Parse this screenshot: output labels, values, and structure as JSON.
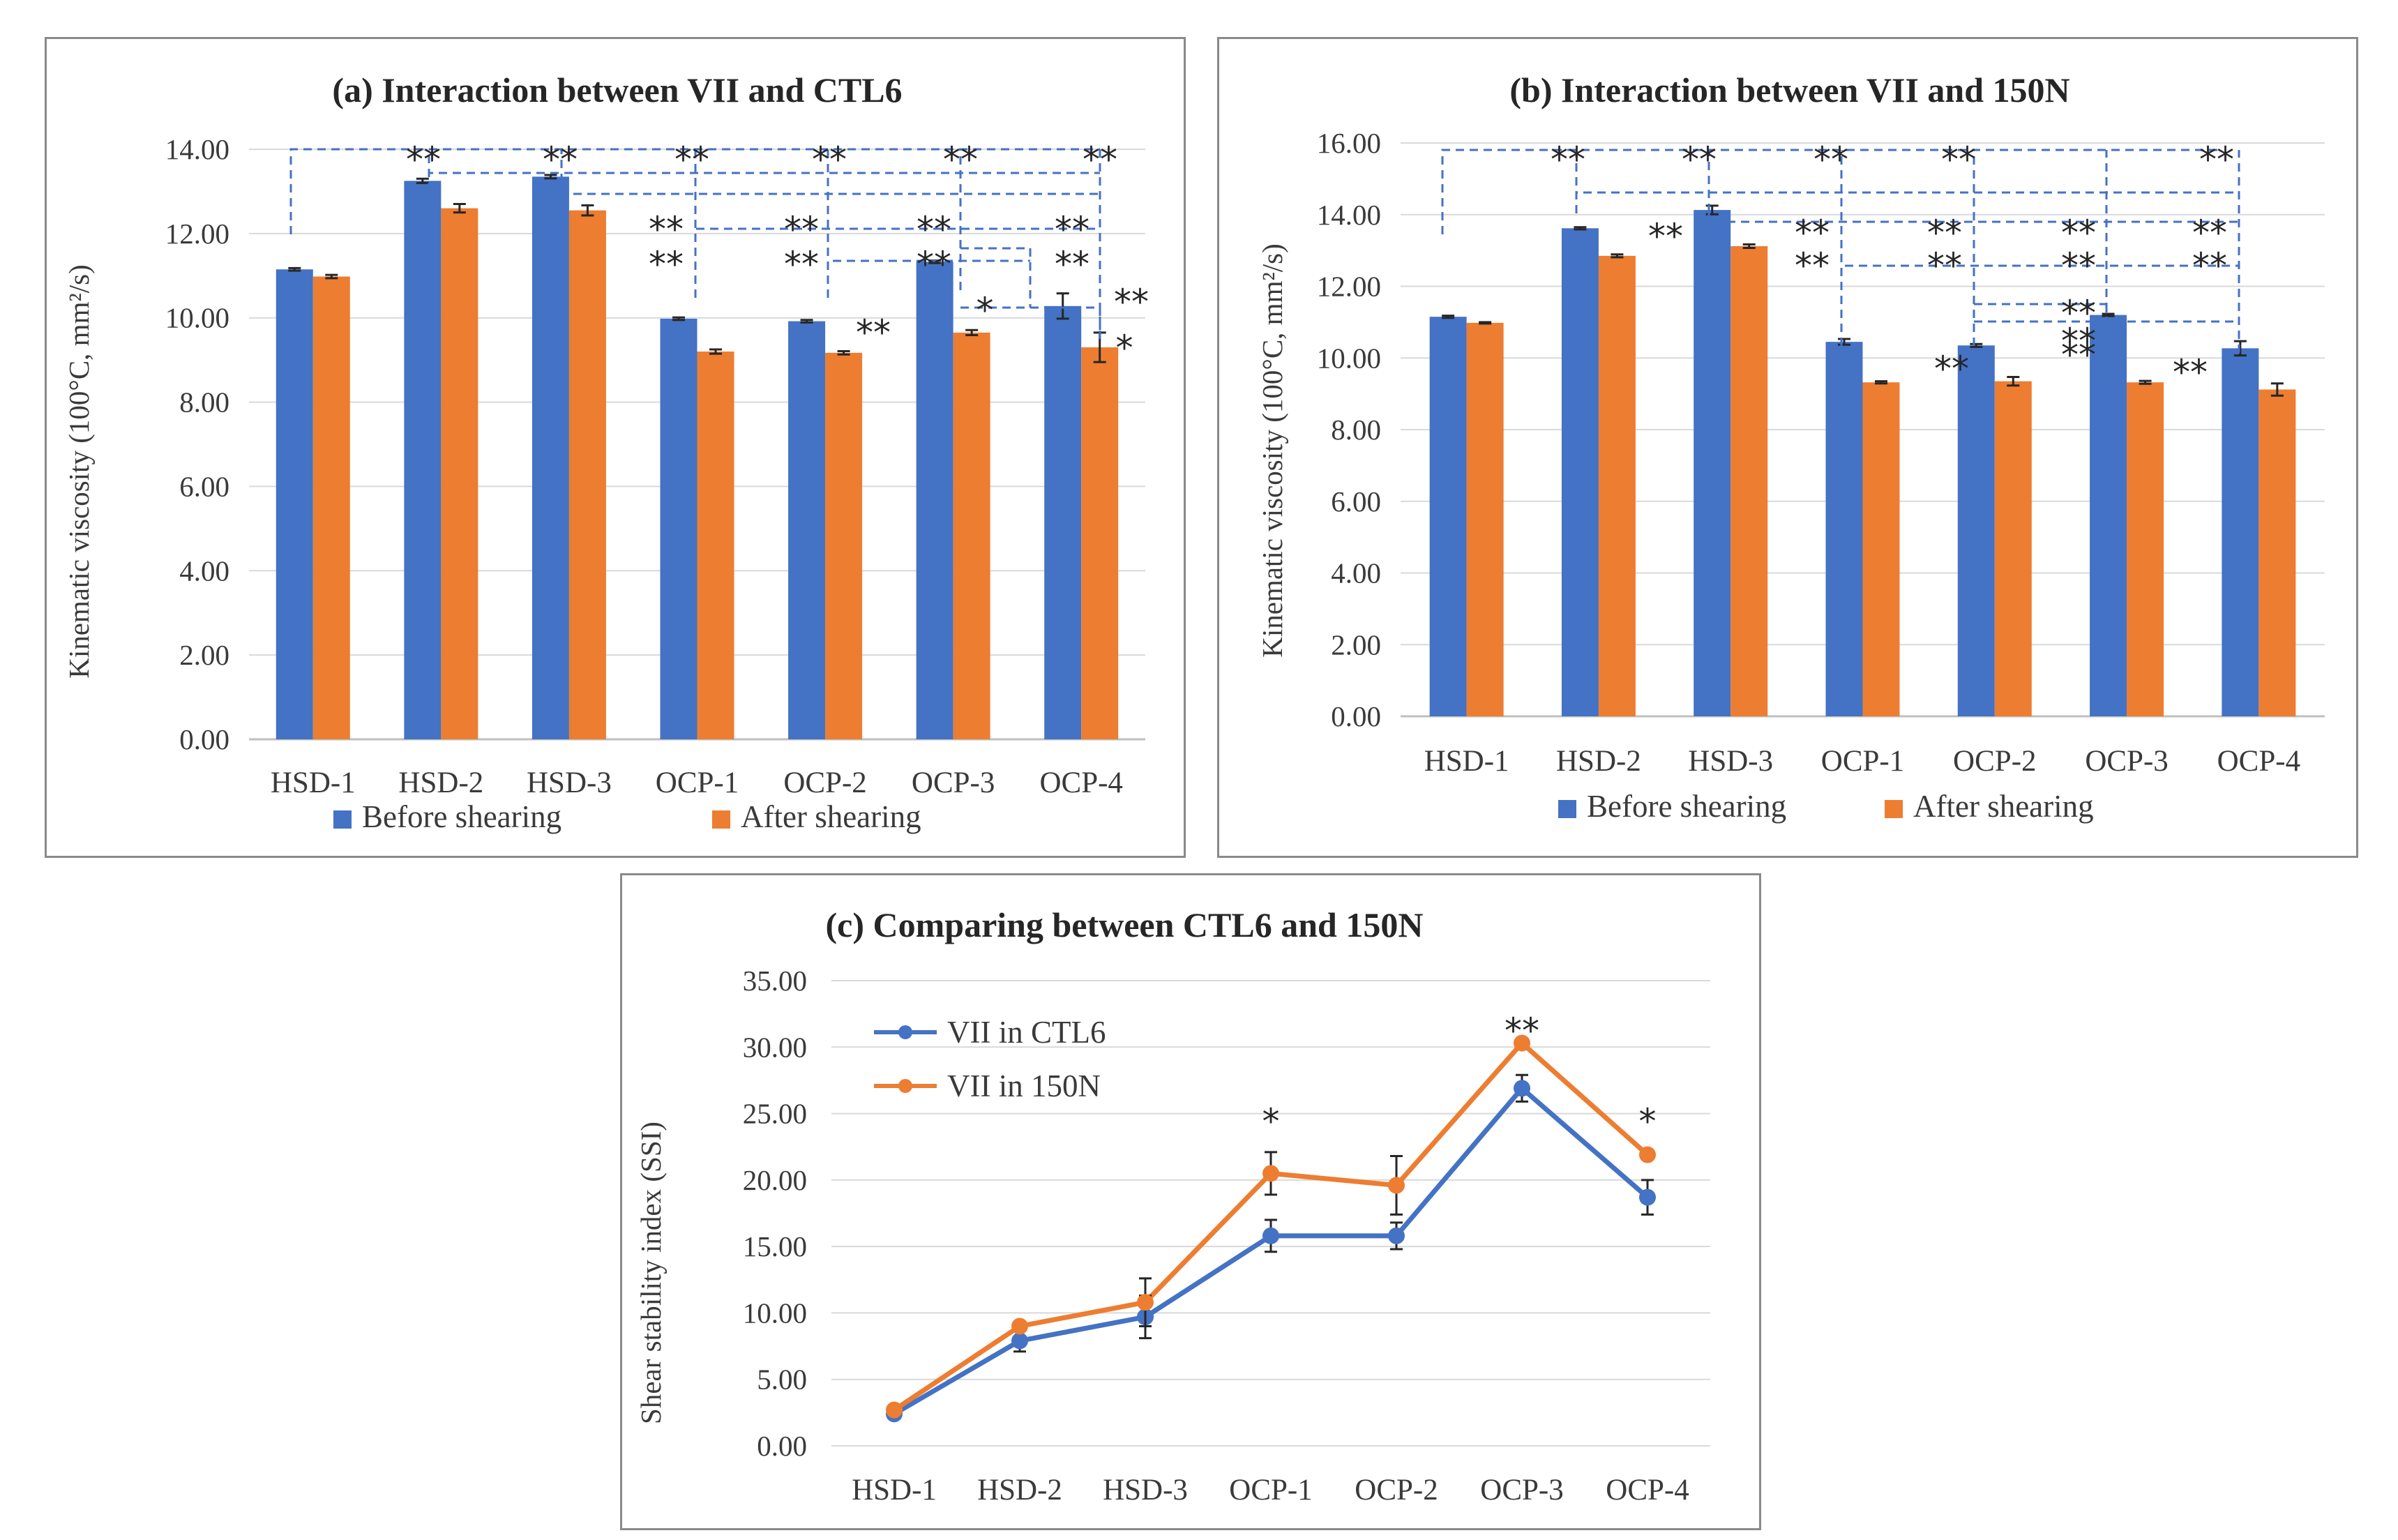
{
  "colors": {
    "before": "#4472c4",
    "after": "#ed7d31",
    "ctl6": "#4472c4",
    "n150": "#ed7d31"
  },
  "panel_a": {
    "title": "(a) Interaction between VII and CTL6",
    "ylabel": "Kinematic viscosity (100°C, mm²/s)",
    "legend": [
      "Before shearing",
      "After shearing"
    ],
    "y_ticks": [
      "0.00",
      "2.00",
      "4.00",
      "6.00",
      "8.00",
      "10.00",
      "12.00",
      "14.00"
    ],
    "annotations": [
      "**",
      "**",
      "**",
      "**",
      "**",
      "**",
      "**",
      "**",
      "**",
      "**",
      "**",
      "**",
      "**",
      "**",
      "**",
      "*",
      "**",
      "*"
    ]
  },
  "panel_b": {
    "title": "(b) Interaction between VII and 150N",
    "ylabel": "Kinematic viscosity (100°C, mm²/s)",
    "legend": [
      "Before shearing",
      "After shearing"
    ],
    "y_ticks": [
      "0.00",
      "2.00",
      "4.00",
      "6.00",
      "8.00",
      "10.00",
      "12.00",
      "14.00",
      "16.00"
    ],
    "annotations": [
      "**",
      "**",
      "**",
      "**",
      "**",
      "**",
      "**",
      "**",
      "**",
      "**",
      "**",
      "**",
      "**",
      "**",
      "**",
      "**",
      "**",
      "**",
      "**"
    ]
  },
  "panel_c": {
    "title": "(c) Comparing between CTL6 and 150N",
    "ylabel": "Shear stability index (SSI)",
    "legend": [
      "VII in CTL6",
      "VII in 150N"
    ],
    "y_ticks": [
      "0.00",
      "5.00",
      "10.00",
      "15.00",
      "20.00",
      "25.00",
      "30.00",
      "35.00"
    ],
    "annotations": [
      "*",
      "**",
      "*"
    ]
  },
  "chart_data": [
    {
      "type": "bar",
      "title": "(a) Interaction between VII and CTL6",
      "ylabel": "Kinematic viscosity (100°C, mm²/s)",
      "xlabel": "",
      "ylim": [
        0,
        14
      ],
      "grid": true,
      "legend": "bottom",
      "categories": [
        "HSD-1",
        "HSD-2",
        "HSD-3",
        "OCP-1",
        "OCP-2",
        "OCP-3",
        "OCP-4"
      ],
      "series": [
        {
          "name": "Before shearing",
          "values": [
            11.15,
            13.25,
            13.35,
            9.98,
            9.92,
            11.33,
            10.28
          ],
          "errors": [
            0.03,
            0.05,
            0.04,
            0.03,
            0.03,
            0.03,
            0.3
          ]
        },
        {
          "name": "After shearing",
          "values": [
            10.98,
            12.6,
            12.55,
            9.2,
            9.17,
            9.65,
            9.3
          ],
          "errors": [
            0.04,
            0.1,
            0.12,
            0.05,
            0.04,
            0.06,
            0.35
          ]
        }
      ]
    },
    {
      "type": "bar",
      "title": "(b) Interaction between VII and 150N",
      "ylabel": "Kinematic viscosity (100°C, mm²/s)",
      "xlabel": "",
      "ylim": [
        0,
        16
      ],
      "grid": true,
      "legend": "bottom",
      "categories": [
        "HSD-1",
        "HSD-2",
        "HSD-3",
        "OCP-1",
        "OCP-2",
        "OCP-3",
        "OCP-4"
      ],
      "series": [
        {
          "name": "Before shearing",
          "values": [
            11.15,
            13.62,
            14.13,
            10.45,
            10.35,
            11.2,
            10.27
          ],
          "errors": [
            0.03,
            0.03,
            0.12,
            0.08,
            0.04,
            0.03,
            0.2
          ]
        },
        {
          "name": "After shearing",
          "values": [
            10.98,
            12.85,
            13.12,
            9.32,
            9.35,
            9.32,
            9.12
          ],
          "errors": [
            0.02,
            0.04,
            0.05,
            0.03,
            0.12,
            0.04,
            0.17
          ]
        }
      ]
    },
    {
      "type": "line",
      "title": "(c) Comparing between CTL6 and 150N",
      "ylabel": "Shear stability index (SSI)",
      "xlabel": "",
      "ylim": [
        0,
        35
      ],
      "grid": true,
      "legend": "top-left",
      "categories": [
        "HSD-1",
        "HSD-2",
        "HSD-3",
        "OCP-1",
        "OCP-2",
        "OCP-3",
        "OCP-4"
      ],
      "series": [
        {
          "name": "VII in CTL6",
          "values": [
            2.4,
            7.9,
            9.7,
            15.8,
            15.8,
            26.9,
            18.7
          ],
          "errors": [
            0.3,
            0.8,
            1.6,
            1.2,
            1.0,
            1.0,
            1.3
          ]
        },
        {
          "name": "VII in 150N",
          "values": [
            2.7,
            9.0,
            10.8,
            20.5,
            19.6,
            30.3,
            21.9
          ],
          "errors": [
            0.2,
            0.3,
            1.8,
            1.6,
            2.2,
            0.3,
            0.3
          ]
        }
      ]
    }
  ]
}
